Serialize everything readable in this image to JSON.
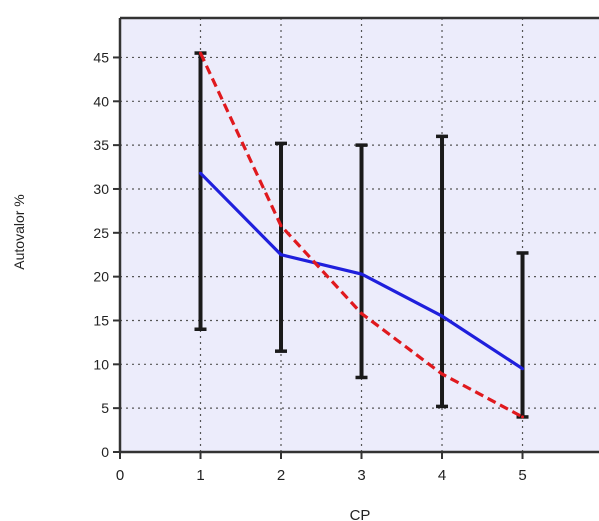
{
  "chart_data": {
    "type": "line",
    "x": [
      1,
      2,
      3,
      4,
      5
    ],
    "xlabel": "CP",
    "ylabel": "Autovalor %",
    "xlim": [
      0,
      5.95
    ],
    "ylim": [
      0,
      49.5
    ],
    "xticks": [
      0,
      1,
      2,
      3,
      4,
      5
    ],
    "yticks": [
      0,
      5,
      10,
      15,
      20,
      25,
      30,
      35,
      40,
      45
    ],
    "grid": true,
    "series": [
      {
        "style": "solid",
        "color": "#1f1fdc",
        "values": [
          31.8,
          22.5,
          20.3,
          15.5,
          9.5
        ]
      },
      {
        "style": "dashed",
        "color": "#e0191e",
        "values": [
          45.5,
          25.8,
          15.8,
          8.9,
          4.0
        ]
      }
    ],
    "error_bars": {
      "color": "#1a1a1a",
      "low": [
        14.0,
        11.5,
        8.5,
        5.2,
        4.0
      ],
      "high": [
        45.5,
        35.2,
        35.0,
        36.0,
        22.7
      ]
    }
  },
  "colors": {
    "plot_background": "#ececfb",
    "grid": "#555555",
    "axis": "#333333"
  }
}
